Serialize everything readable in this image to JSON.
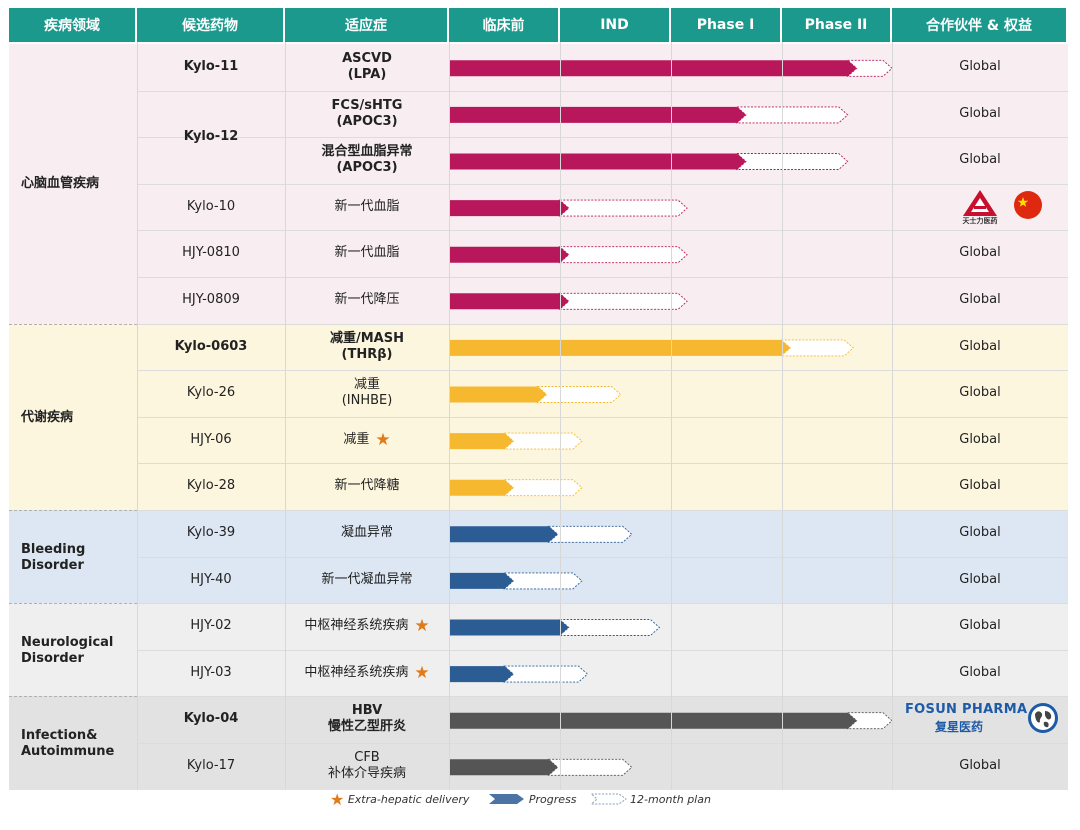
{
  "headers": [
    "疾病领域",
    "候选药物",
    "适应症",
    "临床前",
    "IND",
    "Phase I",
    "Phase II",
    "合作伙伴 & 权益"
  ],
  "colors": {
    "header": "#1a998c",
    "cardio": "#b8185b",
    "metabolic": "#f5b82e",
    "blue": "#2b5c94",
    "gray": "#555555",
    "star": "#e07b1a"
  },
  "areas": [
    {
      "label": "心脑血管疾病",
      "bg": "#f8eef1",
      "color": "#b8185b"
    },
    {
      "label": "代谢疾病",
      "bg": "#fdf6de",
      "color": "#f5b82e"
    },
    {
      "label": "Bleeding Disorder",
      "bg": "#dde7f3",
      "color": "#2b5c94"
    },
    {
      "label": "Neurological Disorder",
      "bg": "#efefef",
      "color": "#2b5c94"
    },
    {
      "label": "Infection& Autoimmune",
      "bg": "#e2e2e2",
      "color": "#555555"
    }
  ],
  "rows": [
    {
      "area": 0,
      "drug": "Kylo-11",
      "drug_bold": true,
      "ind1": "ASCVD",
      "ind2": "(LPA)",
      "ind_bold": true,
      "star": false,
      "progress_stage": 3.6,
      "plan_stage": 4.0,
      "partner": "Global"
    },
    {
      "area": 0,
      "drug": "",
      "drug_bold": true,
      "ind1": "FCS/sHTG",
      "ind2": "(APOC3)",
      "ind_bold": true,
      "star": false,
      "progress_stage": 2.6,
      "plan_stage": 3.6,
      "partner": "Global"
    },
    {
      "area": 0,
      "drug": "",
      "drug_bold": true,
      "ind1": "混合型血脂异常",
      "ind2": "(APOC3)",
      "ind_bold": true,
      "star": false,
      "progress_stage": 2.6,
      "plan_stage": 3.6,
      "partner": "Global"
    },
    {
      "area": 0,
      "drug": "Kylo-10",
      "drug_bold": false,
      "ind1": "新一代血脂",
      "ind2": "",
      "ind_bold": false,
      "star": false,
      "progress_stage": 1.0,
      "plan_stage": 2.15,
      "partner": ""
    },
    {
      "area": 0,
      "drug": "HJY-0810",
      "drug_bold": false,
      "ind1": "新一代血脂",
      "ind2": "",
      "ind_bold": false,
      "star": false,
      "progress_stage": 1.0,
      "plan_stage": 2.15,
      "partner": "Global"
    },
    {
      "area": 0,
      "drug": "HJY-0809",
      "drug_bold": false,
      "ind1": "新一代降压",
      "ind2": "",
      "ind_bold": false,
      "star": false,
      "progress_stage": 1.0,
      "plan_stage": 2.15,
      "partner": "Global"
    },
    {
      "area": 1,
      "drug": "Kylo-0603",
      "drug_bold": true,
      "ind1": "减重/MASH",
      "ind2": "(THRβ)",
      "ind_bold": true,
      "star": false,
      "progress_stage": 3.0,
      "plan_stage": 3.65,
      "partner": "Global"
    },
    {
      "area": 1,
      "drug": "Kylo-26",
      "drug_bold": false,
      "ind1": "减重",
      "ind2": "(INHBE)",
      "ind_bold": false,
      "star": false,
      "progress_stage": 0.8,
      "plan_stage": 1.55,
      "partner": "Global"
    },
    {
      "area": 1,
      "drug": "HJY-06",
      "drug_bold": false,
      "ind1": "减重",
      "ind2": "",
      "ind_bold": false,
      "star": true,
      "progress_stage": 0.5,
      "plan_stage": 1.2,
      "partner": "Global"
    },
    {
      "area": 1,
      "drug": "Kylo-28",
      "drug_bold": false,
      "ind1": "新一代降糖",
      "ind2": "",
      "ind_bold": false,
      "star": false,
      "progress_stage": 0.5,
      "plan_stage": 1.2,
      "partner": "Global"
    },
    {
      "area": 2,
      "drug": "Kylo-39",
      "drug_bold": false,
      "ind1": "凝血异常",
      "ind2": "",
      "ind_bold": false,
      "star": false,
      "progress_stage": 0.9,
      "plan_stage": 1.65,
      "partner": "Global"
    },
    {
      "area": 2,
      "drug": "HJY-40",
      "drug_bold": false,
      "ind1": "新一代凝血异常",
      "ind2": "",
      "ind_bold": false,
      "star": false,
      "progress_stage": 0.5,
      "plan_stage": 1.2,
      "partner": "Global"
    },
    {
      "area": 3,
      "drug": "HJY-02",
      "drug_bold": false,
      "ind1": "中枢神经系统疾病",
      "ind2": "",
      "ind_bold": false,
      "star": true,
      "progress_stage": 1.0,
      "plan_stage": 1.9,
      "partner": "Global"
    },
    {
      "area": 3,
      "drug": "HJY-03",
      "drug_bold": false,
      "ind1": "中枢神经系统疾病",
      "ind2": "",
      "ind_bold": false,
      "star": true,
      "progress_stage": 0.5,
      "plan_stage": 1.25,
      "partner": "Global"
    },
    {
      "area": 4,
      "drug": "Kylo-04",
      "drug_bold": true,
      "ind1": "HBV",
      "ind2": "慢性乙型肝炎",
      "ind_bold": true,
      "star": false,
      "progress_stage": 3.6,
      "plan_stage": 4.0,
      "partner": ""
    },
    {
      "area": 4,
      "drug": "Kylo-17",
      "drug_bold": false,
      "ind1": "CFB",
      "ind2": "补体介导疾病",
      "ind_bold": false,
      "star": false,
      "progress_stage": 0.9,
      "plan_stage": 1.65,
      "partner": "Global"
    }
  ],
  "kylo12_label": "Kylo-12",
  "partners": {
    "tianshili": "天士力医药",
    "fosun_en": "FOSUN PHARMA",
    "fosun_cn": "复星医药"
  },
  "legend": {
    "star": "Extra-hepatic delivery",
    "progress": "Progress",
    "plan": "12-month plan"
  }
}
